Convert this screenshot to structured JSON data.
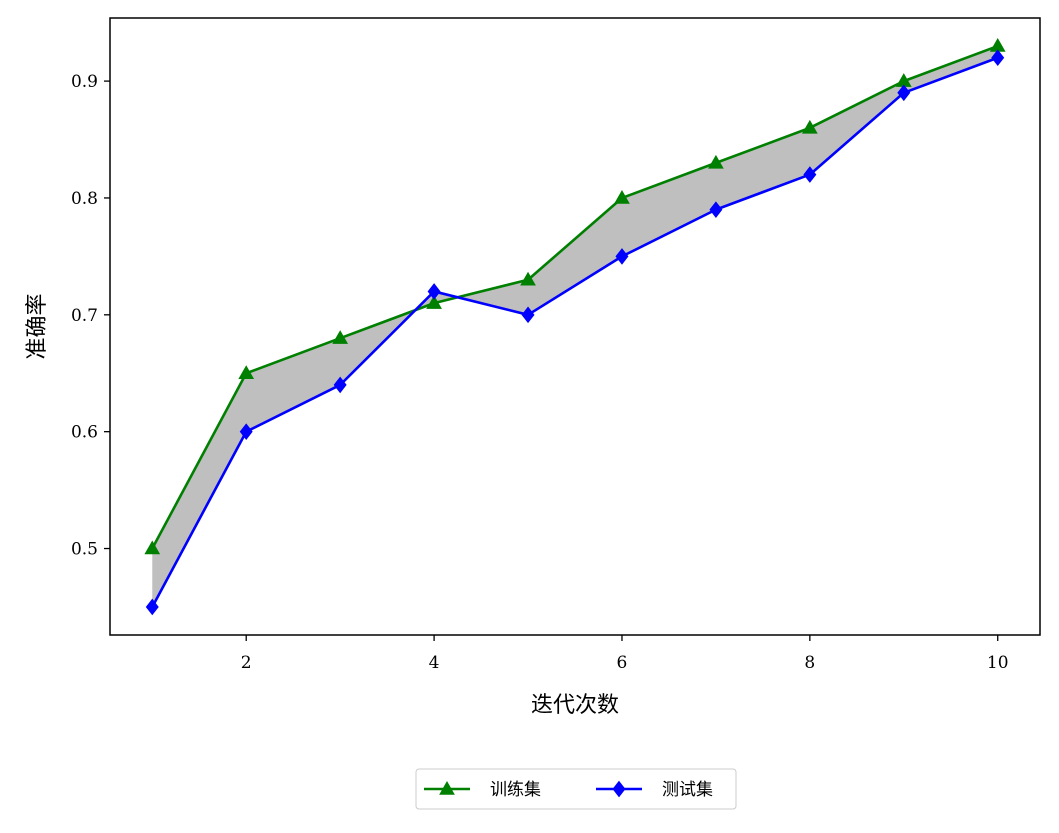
{
  "chart_data": {
    "type": "line",
    "title": "",
    "xlabel": "迭代次数",
    "ylabel": "准确率",
    "x": [
      1,
      2,
      3,
      4,
      5,
      6,
      7,
      8,
      9,
      10
    ],
    "series": [
      {
        "name": "训练集",
        "values": [
          0.5,
          0.65,
          0.68,
          0.71,
          0.73,
          0.8,
          0.83,
          0.86,
          0.9,
          0.93
        ],
        "color": "#008000",
        "marker": "triangle"
      },
      {
        "name": "测试集",
        "values": [
          0.45,
          0.6,
          0.64,
          0.72,
          0.7,
          0.75,
          0.79,
          0.82,
          0.89,
          0.92
        ],
        "color": "#0000ff",
        "marker": "diamond"
      }
    ],
    "fill_between": {
      "series": [
        0,
        1
      ],
      "color": "#bfbfbf"
    },
    "xlim": [
      0.55,
      10.45
    ],
    "ylim": [
      0.426,
      0.954
    ],
    "xticks": [
      2,
      4,
      6,
      8,
      10
    ],
    "xtick_labels": [
      "2",
      "4",
      "6",
      "8",
      "10"
    ],
    "yticks": [
      0.5,
      0.6,
      0.7,
      0.8,
      0.9
    ],
    "ytick_labels": [
      "0.5",
      "0.6",
      "0.7",
      "0.8",
      "0.9"
    ],
    "grid": false,
    "legend_position": "bottom-center, below axes"
  }
}
